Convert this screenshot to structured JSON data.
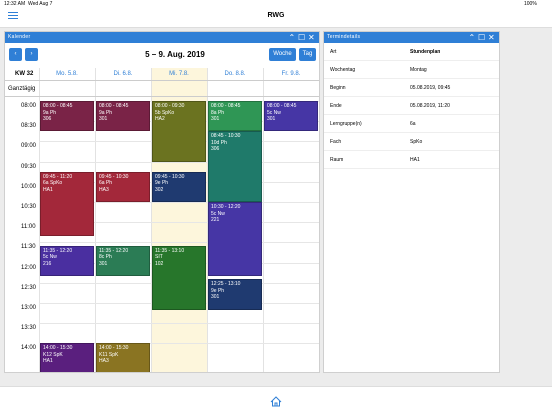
{
  "status_bar": {
    "time": "12:32 AM",
    "date": "Wed Aug 7",
    "battery": "100%"
  },
  "app_bar": {
    "title": "RWG"
  },
  "calendar": {
    "title": "Kalender",
    "range_title": "5 – 9. Aug. 2019",
    "buttons": [
      "Woche",
      "Tag"
    ],
    "week_label": "KW 32",
    "all_day_label": "Ganztägig",
    "times": [
      "08:00",
      "08:30",
      "09:00",
      "09:30",
      "10:00",
      "10:30",
      "11:00",
      "11:30",
      "12:00",
      "12:30",
      "13:00",
      "13:30",
      "14:00"
    ],
    "days": [
      {
        "label": "Mo. 5.8.",
        "events": [
          {
            "time": "08:00 - 08:45",
            "lines": [
              "9a Ph",
              "306"
            ],
            "color": "#7a2347"
          },
          {
            "time": "09:45 - 11:20",
            "lines": [
              "6a SpKo",
              "HA1"
            ],
            "color": "#a3283a"
          },
          {
            "time": "11:35 - 12:20",
            "lines": [
              "5c Nw",
              "216"
            ],
            "color": "#4a2fa0"
          },
          {
            "time": "14:00 - 15:30",
            "lines": [
              "K12 SpK",
              "HA1"
            ],
            "color": "#5a1f7e"
          }
        ]
      },
      {
        "label": "Di. 6.8.",
        "events": [
          {
            "time": "08:00 - 08:45",
            "lines": [
              "9a Ph",
              "301"
            ],
            "color": "#7a2347"
          },
          {
            "time": "09:45 - 10:30",
            "lines": [
              "6a Ph",
              "HA3"
            ],
            "color": "#a3283a"
          },
          {
            "time": "11:35 - 12:20",
            "lines": [
              "8c Ph",
              "301"
            ],
            "color": "#2b7c55"
          },
          {
            "time": "14:00 - 15:30",
            "lines": [
              "K11 SpK",
              "HA3"
            ],
            "color": "#8a7422"
          }
        ]
      },
      {
        "label": "Mi. 7.8.",
        "events": [
          {
            "time": "08:00 - 09:30",
            "lines": [
              "5b SpKo",
              "HA2"
            ],
            "color": "#6b7320"
          },
          {
            "time": "09:45 - 10:30",
            "lines": [
              "9e Ph",
              "302"
            ],
            "color": "#1f3a70"
          },
          {
            "time": "11:35 - 13:10",
            "lines": [
              "SIT",
              "102"
            ],
            "color": "#27762b"
          }
        ]
      },
      {
        "label": "Do. 8.8.",
        "events": [
          {
            "time": "08:00 - 08:45",
            "lines": [
              "8a Ph",
              "301"
            ],
            "color": "#2f9655"
          },
          {
            "time": "08:45 - 10:30",
            "lines": [
              "10d Ph",
              "306"
            ],
            "color": "#1f7a6a"
          },
          {
            "time": "10:30 - 12:20",
            "lines": [
              "5c Nw",
              "221"
            ],
            "color": "#4636a5"
          },
          {
            "time": "12:25 - 13:10",
            "lines": [
              "9e Ph",
              "301"
            ],
            "color": "#1f3a70"
          }
        ]
      },
      {
        "label": "Fr. 9.8.",
        "events": [
          {
            "time": "08:00 - 08:45",
            "lines": [
              "5c Nw",
              "301"
            ],
            "color": "#4636a5"
          }
        ]
      }
    ]
  },
  "details": {
    "title": "Termindetails",
    "rows": [
      [
        "Art",
        "Stundenplan"
      ],
      [
        "Wochentag",
        "Montag"
      ],
      [
        "Beginn",
        "05.08.2019, 09:45"
      ],
      [
        "Ende",
        "05.08.2019, 11:20"
      ],
      [
        "Lerngruppe(n)",
        "6a"
      ],
      [
        "Fach",
        "SpKo"
      ],
      [
        "Raum",
        "HA1"
      ]
    ]
  }
}
